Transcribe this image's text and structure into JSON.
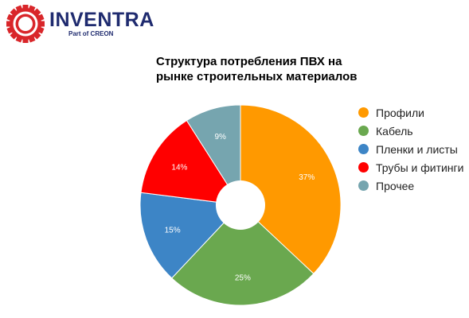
{
  "brand": {
    "name": "INVENTRA",
    "tagline": "Part of CREON",
    "logo_icon": "gear-ring-logo-icon",
    "colors": {
      "red": "#d9262a",
      "navy": "#1f2b6f"
    }
  },
  "chart_data": {
    "type": "pie",
    "title_lines": [
      "Структура потребления ПВХ на",
      "рынке строительных материалов"
    ],
    "donut": true,
    "legend_position": "right",
    "categories": [
      "Профили",
      "Кабель",
      "Пленки и листы",
      "Трубы и фитинги",
      "Прочее"
    ],
    "values": [
      37,
      25,
      15,
      14,
      9
    ],
    "labels": [
      "37%",
      "25%",
      "15%",
      "14%",
      "9%"
    ],
    "colors": [
      "#ff9900",
      "#6aa84f",
      "#3d85c6",
      "#ff0000",
      "#76a5af"
    ]
  }
}
